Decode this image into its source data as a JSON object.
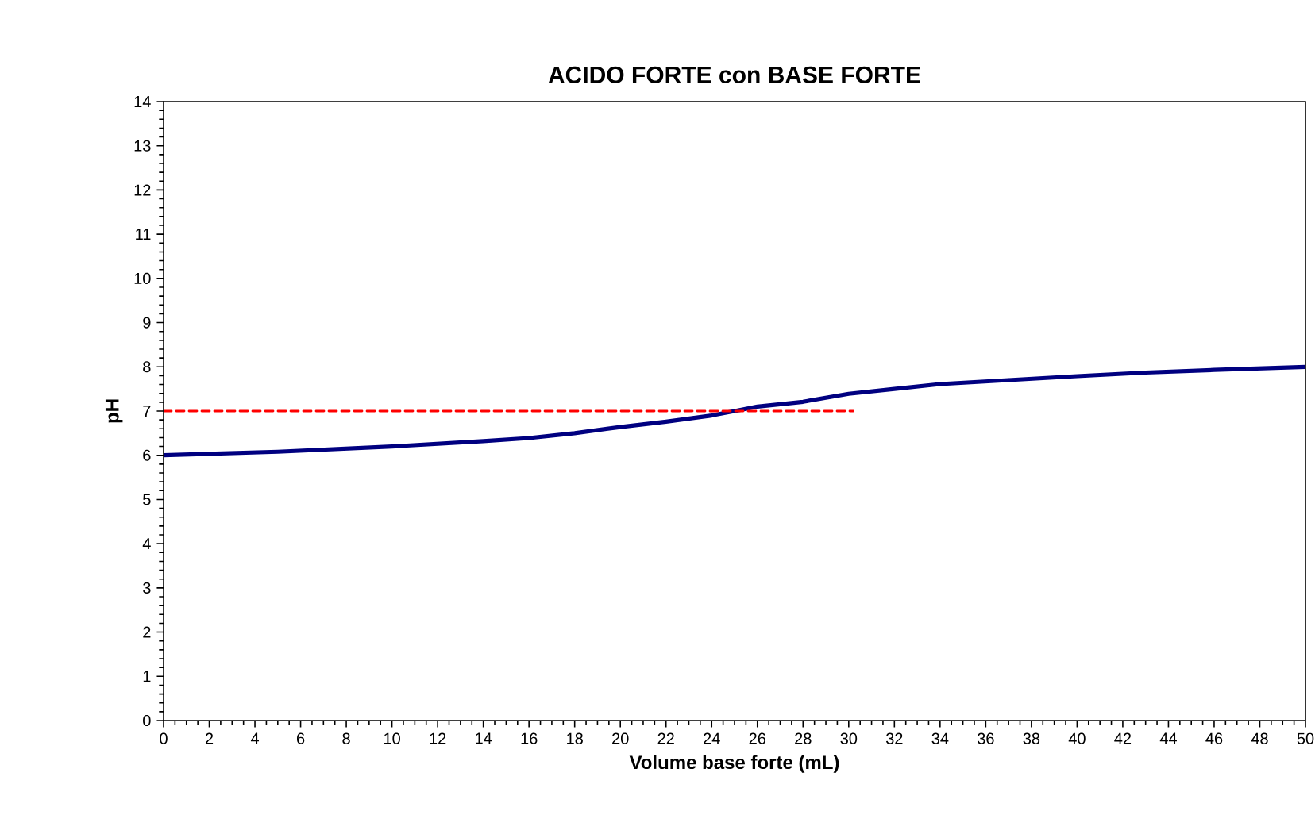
{
  "chart_data": {
    "type": "line",
    "title": "ACIDO FORTE con BASE FORTE",
    "xlabel": "Volume base forte (mL)",
    "ylabel": "pH",
    "xlim": [
      0,
      50
    ],
    "ylim": [
      0,
      14
    ],
    "xticks": [
      0,
      2,
      4,
      6,
      8,
      10,
      12,
      14,
      16,
      18,
      20,
      22,
      24,
      26,
      28,
      30,
      32,
      34,
      36,
      38,
      40,
      42,
      44,
      46,
      48,
      50
    ],
    "yticks": [
      0,
      1,
      2,
      3,
      4,
      5,
      6,
      7,
      8,
      9,
      10,
      11,
      12,
      13,
      14
    ],
    "grid": false,
    "marker": "none",
    "series": [
      {
        "color": "#000080",
        "line_style": "solid",
        "x": [
          0,
          5,
          10,
          14,
          16,
          18,
          20,
          22,
          24,
          25,
          26,
          28,
          30,
          32,
          34,
          37,
          40,
          43,
          46,
          50
        ],
        "values": [
          6.0,
          6.08,
          6.2,
          6.32,
          6.39,
          6.5,
          6.64,
          6.76,
          6.9,
          7.0,
          7.1,
          7.21,
          7.39,
          7.5,
          7.61,
          7.7,
          7.79,
          7.87,
          7.93,
          8.0
        ]
      },
      {
        "color": "#ff0000",
        "line_style": "dashed",
        "x": [
          0,
          30.2
        ],
        "values": [
          7,
          7
        ]
      }
    ]
  }
}
